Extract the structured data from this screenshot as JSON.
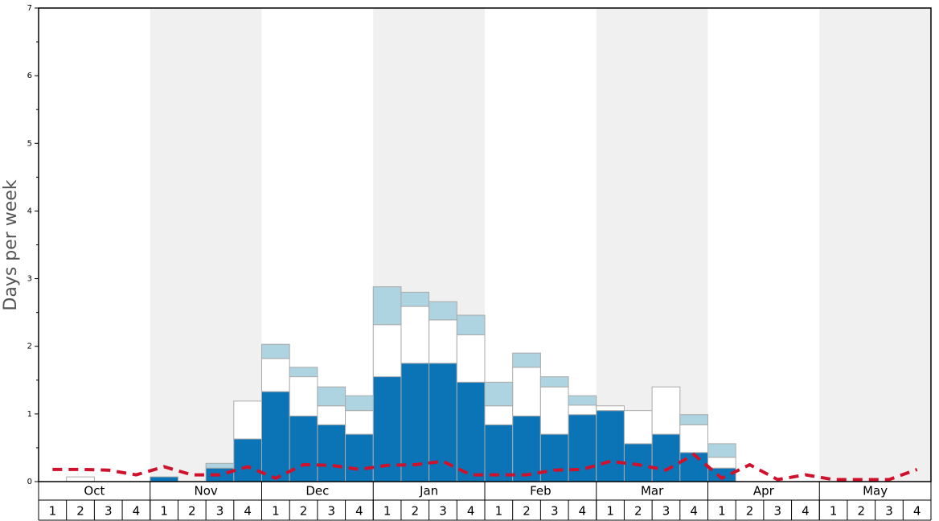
{
  "chart_data": {
    "type": "stacked-bar",
    "ylabel": "Days per week",
    "months": [
      "Oct",
      "Nov",
      "Dec",
      "Jan",
      "Feb",
      "Mar",
      "Apr",
      "May"
    ],
    "categories": [
      "1",
      "2",
      "3",
      "4",
      "1",
      "2",
      "3",
      "4",
      "1",
      "2",
      "3",
      "4",
      "1",
      "2",
      "3",
      "4",
      "1",
      "2",
      "3",
      "4",
      "1",
      "2",
      "3",
      "4",
      "1",
      "2",
      "3",
      "4",
      "1",
      "2",
      "3",
      "4"
    ],
    "series": [
      {
        "color": "#0a74b6",
        "values": [
          0,
          0,
          0,
          0,
          0.07,
          0,
          0.2,
          0.63,
          1.33,
          0.97,
          0.84,
          0.7,
          1.55,
          1.75,
          1.75,
          1.47,
          0.84,
          0.97,
          0.7,
          0.99,
          1.05,
          0.56,
          0.7,
          0.43,
          0.2,
          0,
          0,
          0,
          0,
          0,
          0,
          0
        ]
      },
      {
        "color": "#ffffff",
        "values": [
          0,
          0.07,
          0,
          0,
          0,
          0,
          0,
          0.56,
          0.49,
          0.58,
          0.28,
          0.35,
          0.77,
          0.84,
          0.64,
          0.7,
          0.28,
          0.72,
          0.7,
          0.14,
          0.07,
          0.49,
          0.7,
          0.41,
          0.16,
          0,
          0,
          0,
          0,
          0,
          0,
          0
        ]
      },
      {
        "color": "#add4e0",
        "values": [
          0,
          0,
          0,
          0,
          0,
          0,
          0.07,
          0,
          0.21,
          0.14,
          0.28,
          0.22,
          0.56,
          0.21,
          0.27,
          0.29,
          0.35,
          0.21,
          0.15,
          0.14,
          0,
          0,
          0,
          0.15,
          0.2,
          0,
          0,
          0,
          0,
          0,
          0,
          0
        ]
      },
      {
        "type": "line",
        "color": "#d0112b",
        "values": [
          0.18,
          0.18,
          0.17,
          0.1,
          0.22,
          0.1,
          0.1,
          0.22,
          0.05,
          0.25,
          0.24,
          0.18,
          0.24,
          0.25,
          0.3,
          0.1,
          0.1,
          0.1,
          0.17,
          0.18,
          0.3,
          0.25,
          0.17,
          0.4,
          0.05,
          0.25,
          0.03,
          0.1,
          0.03,
          0.03,
          0.03,
          0.18
        ]
      }
    ],
    "ylim": [
      0,
      7
    ],
    "yticks": [
      0,
      1,
      2,
      3,
      4,
      5,
      6,
      7
    ],
    "yminorticks": [
      0.5,
      1.5,
      2.5,
      3.5,
      4.5,
      5.5,
      6.5
    ]
  }
}
